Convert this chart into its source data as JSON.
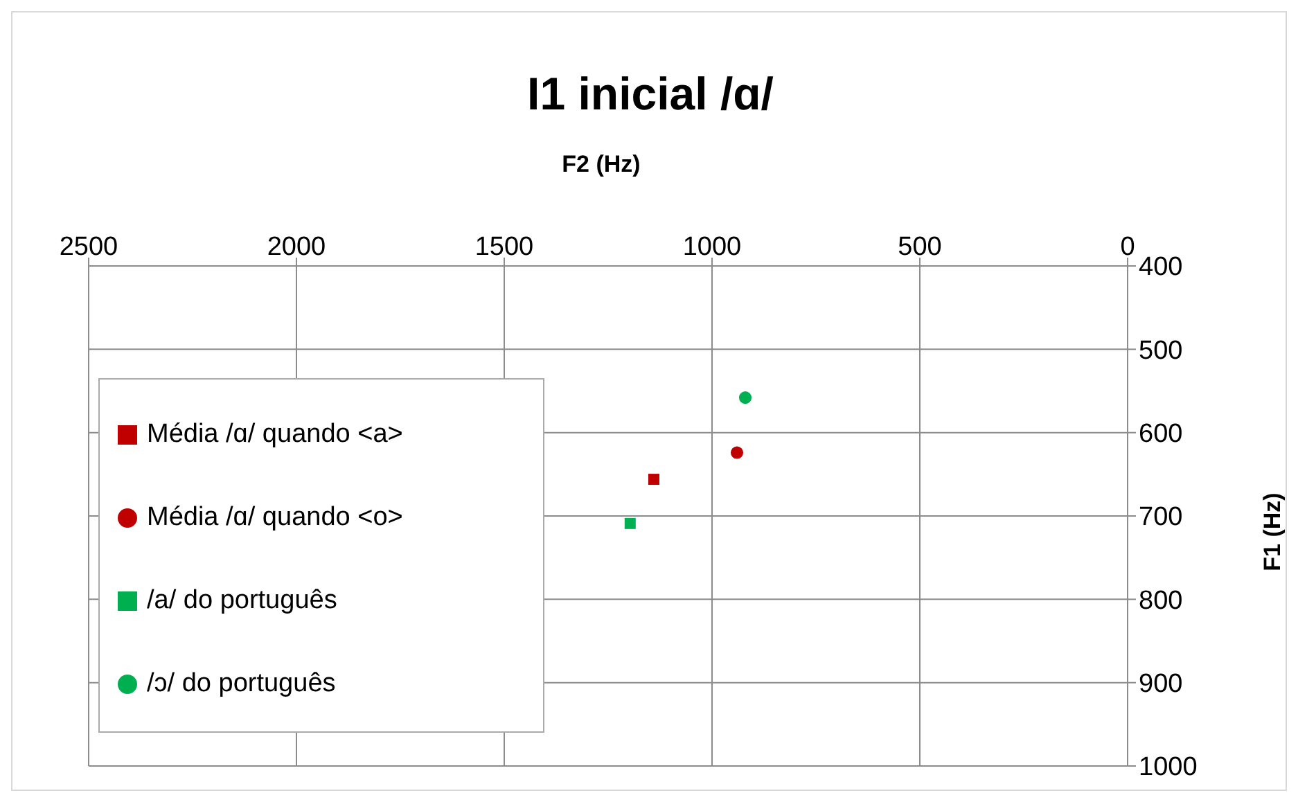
{
  "chart_data": {
    "type": "scatter",
    "title": "I1 inicial /ɑ/",
    "xlabel": "F2 (Hz)",
    "ylabel": "F1 (Hz)",
    "xlim": [
      2500,
      0
    ],
    "xticks": [
      2500,
      2000,
      1500,
      1000,
      500,
      0
    ],
    "ylim": [
      1000,
      400
    ],
    "yticks": [
      400,
      500,
      600,
      700,
      800,
      900,
      1000
    ],
    "grid": true,
    "legend": "left",
    "series": [
      {
        "name": "Média /ɑ/ quando <a>",
        "color": "#c00000",
        "marker": "square",
        "x": [
          1140
        ],
        "values": [
          656
        ]
      },
      {
        "name": "Média /ɑ/ quando <o>",
        "color": "#c00000",
        "marker": "circle",
        "x": [
          940
        ],
        "values": [
          624
        ]
      },
      {
        "name": "/a/ do português",
        "color": "#00b050",
        "marker": "square",
        "x": [
          1197
        ],
        "values": [
          709
        ]
      },
      {
        "name": "/ɔ/ do português",
        "color": "#00b050",
        "marker": "circle",
        "x": [
          920
        ],
        "values": [
          558
        ]
      }
    ]
  }
}
